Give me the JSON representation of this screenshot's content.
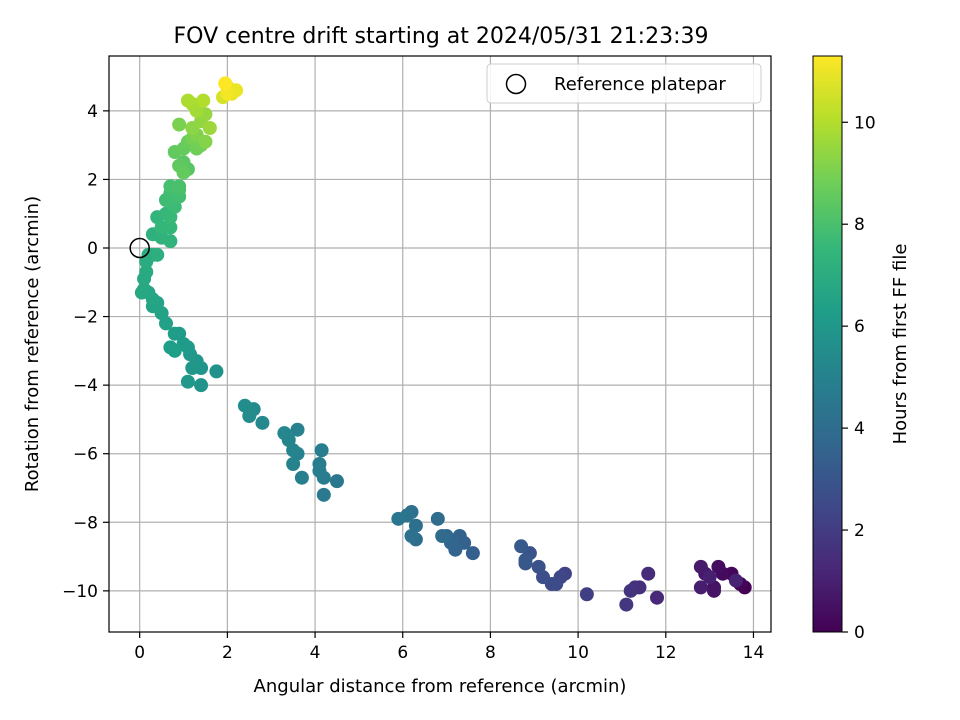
{
  "chart_data": {
    "type": "scatter",
    "title": "FOV centre drift starting at 2024/05/31 21:23:39",
    "xlabel": "Angular distance from reference (arcmin)",
    "ylabel": "Rotation from reference (arcmin)",
    "xlim": [
      -0.7,
      14.4
    ],
    "ylim": [
      -11.2,
      5.6
    ],
    "xticks": [
      0,
      2,
      4,
      6,
      8,
      10,
      12,
      14
    ],
    "yticks": [
      -10,
      -8,
      -6,
      -4,
      -2,
      0,
      2,
      4
    ],
    "grid": true,
    "legend": {
      "position": "top-right",
      "entries": [
        "Reference platepar"
      ]
    },
    "reference": {
      "label": "Reference platepar",
      "x": 0,
      "y": 0
    },
    "colorbar": {
      "label": "Hours from first FF file",
      "min": 0,
      "max": 11.3,
      "ticks": [
        0,
        2,
        4,
        6,
        8,
        10
      ],
      "colormap": "viridis"
    },
    "series": [
      {
        "points": [
          [
            13.8,
            -9.9,
            0.0
          ],
          [
            13.7,
            -9.8,
            0.1
          ],
          [
            13.5,
            -9.5,
            0.2
          ],
          [
            13.3,
            -9.5,
            0.3
          ],
          [
            13.2,
            -9.3,
            0.4
          ],
          [
            13.1,
            -9.9,
            0.5
          ],
          [
            13.1,
            -10.0,
            0.6
          ],
          [
            12.9,
            -9.5,
            0.7
          ],
          [
            12.8,
            -9.3,
            0.8
          ],
          [
            12.8,
            -9.9,
            0.9
          ],
          [
            13.0,
            -9.6,
            1.0
          ],
          [
            13.6,
            -9.7,
            1.1
          ],
          [
            11.8,
            -10.2,
            1.3
          ],
          [
            11.6,
            -9.5,
            1.4
          ],
          [
            11.4,
            -9.9,
            1.5
          ],
          [
            11.3,
            -9.9,
            1.6
          ],
          [
            11.2,
            -10.0,
            1.7
          ],
          [
            11.1,
            -10.4,
            1.8
          ],
          [
            10.2,
            -10.1,
            2.1
          ],
          [
            9.7,
            -9.5,
            2.3
          ],
          [
            9.6,
            -9.6,
            2.4
          ],
          [
            9.5,
            -9.8,
            2.5
          ],
          [
            9.4,
            -9.8,
            2.6
          ],
          [
            9.2,
            -9.6,
            2.7
          ],
          [
            9.1,
            -9.3,
            2.8
          ],
          [
            8.9,
            -8.9,
            2.9
          ],
          [
            8.8,
            -9.2,
            3.0
          ],
          [
            8.8,
            -9.1,
            3.1
          ],
          [
            8.7,
            -8.7,
            3.2
          ],
          [
            7.6,
            -8.9,
            3.4
          ],
          [
            7.4,
            -8.6,
            3.5
          ],
          [
            7.3,
            -8.4,
            3.55
          ],
          [
            7.2,
            -8.8,
            3.6
          ],
          [
            7.1,
            -8.6,
            3.7
          ],
          [
            7.0,
            -8.4,
            3.8
          ],
          [
            6.9,
            -8.4,
            3.9
          ],
          [
            6.8,
            -7.9,
            3.95
          ],
          [
            6.3,
            -8.5,
            4.0
          ],
          [
            6.3,
            -8.1,
            4.1
          ],
          [
            6.2,
            -7.7,
            4.15
          ],
          [
            6.2,
            -8.4,
            4.2
          ],
          [
            6.1,
            -7.8,
            4.3
          ],
          [
            5.9,
            -7.9,
            4.4
          ],
          [
            4.5,
            -6.8,
            4.55
          ],
          [
            4.2,
            -7.2,
            4.6
          ],
          [
            4.2,
            -6.7,
            4.7
          ],
          [
            4.1,
            -6.3,
            4.75
          ],
          [
            4.1,
            -6.5,
            4.8
          ],
          [
            4.15,
            -5.9,
            4.85
          ],
          [
            3.7,
            -6.7,
            4.9
          ],
          [
            3.6,
            -5.3,
            4.95
          ],
          [
            3.6,
            -6.0,
            5.0
          ],
          [
            3.5,
            -6.3,
            5.05
          ],
          [
            3.5,
            -5.9,
            5.1
          ],
          [
            3.4,
            -5.6,
            5.15
          ],
          [
            3.3,
            -5.4,
            5.2
          ],
          [
            2.8,
            -5.1,
            5.3
          ],
          [
            2.6,
            -4.7,
            5.4
          ],
          [
            2.5,
            -4.9,
            5.45
          ],
          [
            2.4,
            -4.6,
            5.5
          ],
          [
            1.75,
            -3.6,
            5.7
          ],
          [
            1.4,
            -4.0,
            5.8
          ],
          [
            1.4,
            -3.5,
            5.85
          ],
          [
            1.3,
            -3.3,
            5.9
          ],
          [
            1.2,
            -3.5,
            5.95
          ],
          [
            1.15,
            -3.1,
            6.0
          ],
          [
            1.1,
            -3.9,
            6.05
          ],
          [
            1.1,
            -2.9,
            6.1
          ],
          [
            1.0,
            -2.8,
            6.15
          ],
          [
            0.9,
            -2.5,
            6.2
          ],
          [
            0.8,
            -2.5,
            6.25
          ],
          [
            0.7,
            -2.9,
            6.3
          ],
          [
            0.8,
            -3.0,
            6.35
          ],
          [
            0.6,
            -2.2,
            6.45
          ],
          [
            0.5,
            -1.9,
            6.5
          ],
          [
            0.4,
            -1.6,
            6.55
          ],
          [
            0.3,
            -1.7,
            6.6
          ],
          [
            0.3,
            -1.5,
            6.65
          ],
          [
            0.2,
            -1.3,
            6.7
          ],
          [
            0.1,
            -1.2,
            6.75
          ],
          [
            0.05,
            -1.3,
            6.8
          ],
          [
            0.1,
            -0.9,
            6.85
          ],
          [
            0.15,
            -0.7,
            6.9
          ],
          [
            0.15,
            -0.4,
            6.95
          ],
          [
            0.2,
            -0.2,
            7.0
          ],
          [
            0.3,
            -0.2,
            7.05
          ],
          [
            0.4,
            -0.2,
            7.1
          ],
          [
            0.3,
            0.4,
            7.2
          ],
          [
            0.5,
            0.3,
            7.3
          ],
          [
            0.7,
            0.2,
            7.35
          ],
          [
            0.4,
            0.9,
            7.4
          ],
          [
            0.5,
            0.6,
            7.45
          ],
          [
            0.7,
            0.6,
            7.5
          ],
          [
            0.6,
            1.0,
            7.55
          ],
          [
            0.7,
            0.9,
            7.6
          ],
          [
            0.8,
            1.2,
            7.7
          ],
          [
            0.6,
            1.4,
            7.75
          ],
          [
            0.7,
            1.6,
            7.8
          ],
          [
            0.9,
            1.5,
            7.85
          ],
          [
            0.9,
            1.7,
            7.9
          ],
          [
            0.7,
            1.8,
            7.95
          ],
          [
            0.9,
            1.8,
            8.0
          ],
          [
            1.1,
            2.3,
            8.3
          ],
          [
            1.0,
            2.5,
            8.4
          ],
          [
            0.9,
            2.4,
            8.45
          ],
          [
            0.8,
            2.8,
            8.5
          ],
          [
            1.0,
            2.2,
            8.55
          ],
          [
            1.0,
            2.9,
            8.6
          ],
          [
            1.1,
            3.1,
            8.7
          ],
          [
            1.3,
            2.9,
            8.8
          ],
          [
            1.4,
            3.0,
            8.85
          ],
          [
            1.2,
            3.2,
            8.9
          ],
          [
            0.9,
            3.6,
            9.0
          ],
          [
            1.3,
            3.3,
            9.1
          ],
          [
            1.5,
            3.1,
            9.2
          ],
          [
            1.2,
            3.5,
            9.3
          ],
          [
            1.4,
            3.7,
            9.4
          ],
          [
            1.5,
            3.9,
            9.5
          ],
          [
            1.6,
            3.5,
            9.6
          ],
          [
            1.3,
            4.0,
            9.7
          ],
          [
            1.2,
            4.2,
            9.8
          ],
          [
            1.1,
            4.3,
            9.9
          ],
          [
            1.45,
            4.3,
            10.0
          ],
          [
            1.9,
            4.4,
            10.6
          ],
          [
            2.0,
            4.7,
            10.8
          ],
          [
            2.1,
            4.5,
            10.9
          ],
          [
            2.2,
            4.6,
            11.0
          ],
          [
            2.0,
            4.5,
            11.1
          ],
          [
            1.95,
            4.8,
            11.3
          ]
        ]
      }
    ]
  }
}
